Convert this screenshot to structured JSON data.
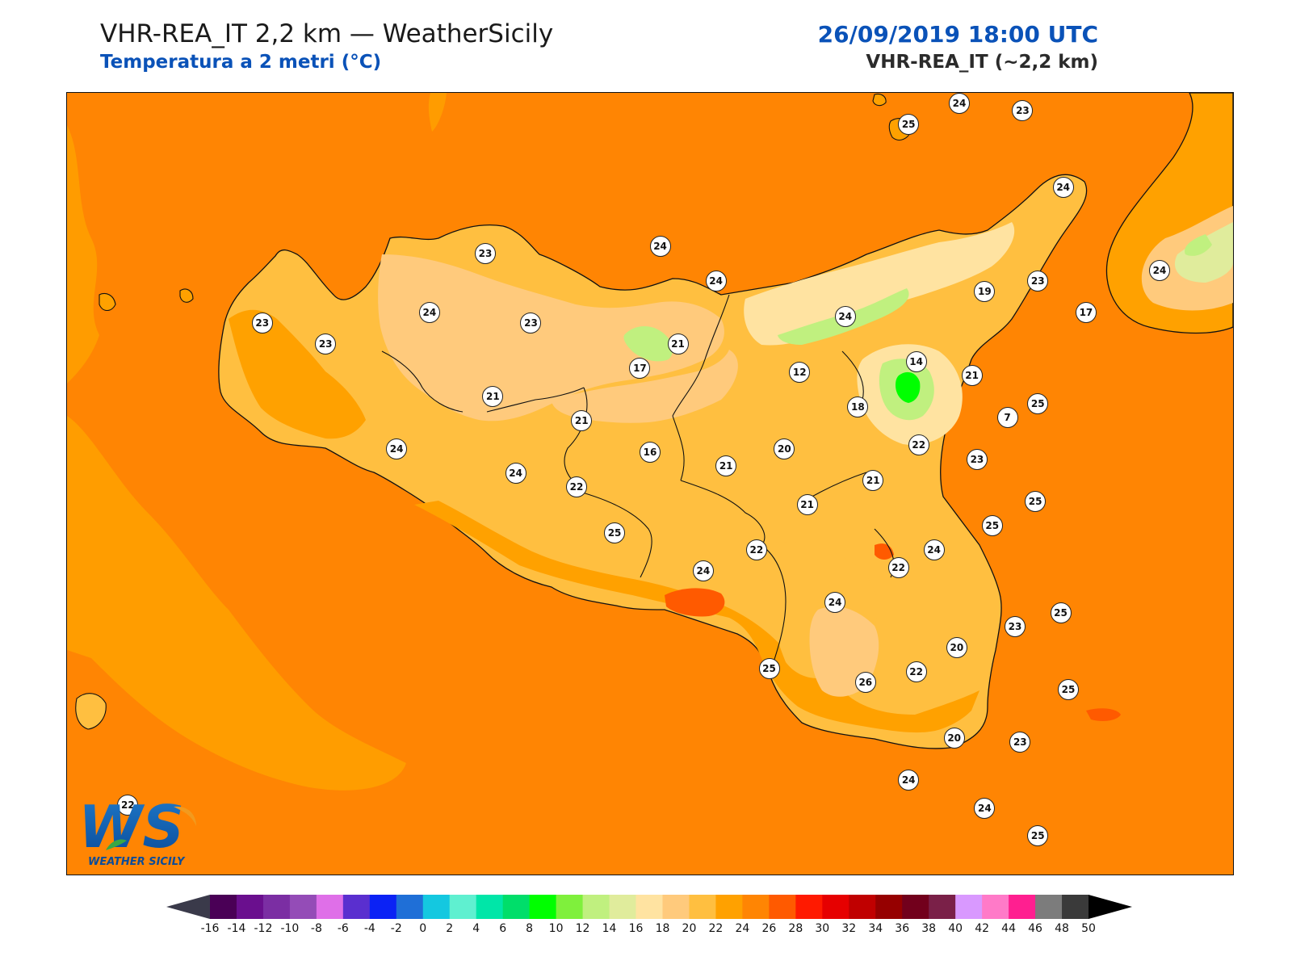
{
  "header": {
    "title": "VHR-REA_IT 2,2 km — WeatherSicily",
    "subtitle": "Temperatura a 2 metri (°C)",
    "datetime": "26/09/2019 18:00 UTC",
    "model": "VHR-REA_IT (~2,2 km)"
  },
  "logo": {
    "monogram": "WS",
    "text": "WEATHER SICILY"
  },
  "map": {
    "background_color": "#ff8503",
    "points": [
      {
        "value": "25",
        "lon": 15.02,
        "lat": 38.5
      },
      {
        "value": "24",
        "lon": 15.22,
        "lat": 38.56
      },
      {
        "value": "23",
        "lon": 15.47,
        "lat": 38.54
      },
      {
        "value": "24",
        "lon": 15.63,
        "lat": 38.32
      },
      {
        "value": "23",
        "lon": 13.35,
        "lat": 38.13
      },
      {
        "value": "24",
        "lon": 14.04,
        "lat": 38.15
      },
      {
        "value": "24",
        "lon": 14.26,
        "lat": 38.05
      },
      {
        "value": "23",
        "lon": 15.53,
        "lat": 38.05
      },
      {
        "value": "19",
        "lon": 15.32,
        "lat": 38.02
      },
      {
        "value": "24",
        "lon": 16.01,
        "lat": 38.08
      },
      {
        "value": "17",
        "lon": 15.72,
        "lat": 37.96
      },
      {
        "value": "23",
        "lon": 12.47,
        "lat": 37.93
      },
      {
        "value": "24",
        "lon": 13.13,
        "lat": 37.96
      },
      {
        "value": "23",
        "lon": 13.53,
        "lat": 37.93
      },
      {
        "value": "23",
        "lon": 12.72,
        "lat": 37.87
      },
      {
        "value": "21",
        "lon": 14.11,
        "lat": 37.87
      },
      {
        "value": "24",
        "lon": 14.77,
        "lat": 37.95
      },
      {
        "value": "17",
        "lon": 13.96,
        "lat": 37.8
      },
      {
        "value": "12",
        "lon": 14.59,
        "lat": 37.79
      },
      {
        "value": "14",
        "lon": 15.05,
        "lat": 37.82
      },
      {
        "value": "21",
        "lon": 15.27,
        "lat": 37.78
      },
      {
        "value": "21",
        "lon": 13.38,
        "lat": 37.72
      },
      {
        "value": "18",
        "lon": 14.82,
        "lat": 37.69
      },
      {
        "value": "25",
        "lon": 15.53,
        "lat": 37.7
      },
      {
        "value": "7",
        "lon": 15.41,
        "lat": 37.66
      },
      {
        "value": "21",
        "lon": 13.73,
        "lat": 37.65
      },
      {
        "value": "24",
        "lon": 13.0,
        "lat": 37.57
      },
      {
        "value": "22",
        "lon": 15.06,
        "lat": 37.58
      },
      {
        "value": "16",
        "lon": 14.0,
        "lat": 37.56
      },
      {
        "value": "20",
        "lon": 14.53,
        "lat": 37.57
      },
      {
        "value": "21",
        "lon": 14.3,
        "lat": 37.52
      },
      {
        "value": "23",
        "lon": 15.29,
        "lat": 37.54
      },
      {
        "value": "24",
        "lon": 13.47,
        "lat": 37.5
      },
      {
        "value": "21",
        "lon": 14.88,
        "lat": 37.48
      },
      {
        "value": "22",
        "lon": 13.71,
        "lat": 37.46
      },
      {
        "value": "21",
        "lon": 14.62,
        "lat": 37.41
      },
      {
        "value": "25",
        "lon": 15.52,
        "lat": 37.42
      },
      {
        "value": "25",
        "lon": 15.35,
        "lat": 37.35
      },
      {
        "value": "25",
        "lon": 13.86,
        "lat": 37.33
      },
      {
        "value": "22",
        "lon": 14.42,
        "lat": 37.28
      },
      {
        "value": "24",
        "lon": 15.12,
        "lat": 37.28
      },
      {
        "value": "22",
        "lon": 14.98,
        "lat": 37.23
      },
      {
        "value": "24",
        "lon": 14.21,
        "lat": 37.22
      },
      {
        "value": "24",
        "lon": 14.73,
        "lat": 37.13
      },
      {
        "value": "25",
        "lon": 15.62,
        "lat": 37.1
      },
      {
        "value": "23",
        "lon": 15.44,
        "lat": 37.06
      },
      {
        "value": "20",
        "lon": 15.21,
        "lat": 37.0
      },
      {
        "value": "25",
        "lon": 14.47,
        "lat": 36.94
      },
      {
        "value": "22",
        "lon": 15.05,
        "lat": 36.93
      },
      {
        "value": "26",
        "lon": 14.85,
        "lat": 36.9
      },
      {
        "value": "25",
        "lon": 15.65,
        "lat": 36.88
      },
      {
        "value": "20",
        "lon": 15.2,
        "lat": 36.74
      },
      {
        "value": "23",
        "lon": 15.46,
        "lat": 36.73
      },
      {
        "value": "24",
        "lon": 15.02,
        "lat": 36.62
      },
      {
        "value": "24",
        "lon": 15.32,
        "lat": 36.54
      },
      {
        "value": "25",
        "lon": 15.53,
        "lat": 36.46
      },
      {
        "value": "22",
        "lon": 11.94,
        "lat": 36.55
      }
    ]
  },
  "colorbar": {
    "ticks": [
      "-16",
      "-14",
      "-12",
      "-10",
      "-8",
      "-6",
      "-4",
      "-2",
      "0",
      "2",
      "4",
      "6",
      "8",
      "10",
      "12",
      "14",
      "16",
      "18",
      "20",
      "22",
      "24",
      "26",
      "28",
      "30",
      "32",
      "34",
      "36",
      "38",
      "40",
      "42",
      "44",
      "46",
      "48",
      "50"
    ],
    "colors": [
      "#4a0056",
      "#6a0f8e",
      "#7b2ea3",
      "#944cb7",
      "#df6fe8",
      "#5a2fcf",
      "#0b22f5",
      "#1f6fd7",
      "#14c8e0",
      "#5ff0d0",
      "#00e6a8",
      "#00de6a",
      "#00ff00",
      "#7ff03c",
      "#c0f07f",
      "#e0ec9c",
      "#ffe3a1",
      "#ffca7c",
      "#ffbf40",
      "#ffa100",
      "#ff8503",
      "#ff5a00",
      "#ff1a00",
      "#e60000",
      "#c00000",
      "#960000",
      "#72001c",
      "#7a2048",
      "#d999ff",
      "#ff7ac8",
      "#ff1f90",
      "#7c7c7c",
      "#3a3a3a"
    ]
  }
}
